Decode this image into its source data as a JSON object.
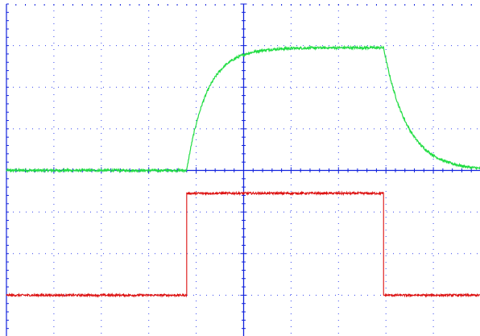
{
  "colors": {
    "background": "#ffffff",
    "grid": "#3344ee",
    "axis": "#1122dd",
    "channel_1": "#22dd44",
    "channel_2": "#dd1111"
  },
  "chart_data": {
    "type": "line",
    "title": "",
    "xlabel": "",
    "ylabel": "",
    "grid": true,
    "divisions": {
      "x": 10,
      "y": 8
    },
    "xlim": [
      -5,
      5
    ],
    "ylim": [
      -4,
      4
    ],
    "tick_labels_printed": false,
    "series": [
      {
        "color": "#22dd44",
        "model": "rc_step_response",
        "baseline": 0.0,
        "step_high": 2.95,
        "rise_start_x": -1.2,
        "fall_start_x": 2.95,
        "rise_time_constant": 0.42,
        "fall_time_constant": 0.5,
        "x": [
          -5,
          -1.2,
          -0.9,
          -0.6,
          -0.3,
          0.0,
          0.5,
          1.0,
          2.0,
          2.95,
          3.2,
          3.5,
          4.0,
          4.5,
          5.0
        ],
        "values": [
          0.0,
          0.0,
          1.55,
          2.2,
          2.6,
          2.78,
          2.88,
          2.92,
          2.95,
          2.95,
          1.8,
          1.05,
          0.45,
          0.17,
          0.05
        ]
      },
      {
        "color": "#dd1111",
        "model": "square_pulse",
        "low": -3.0,
        "high": -0.55,
        "rise_x": -1.2,
        "fall_x": 2.95,
        "x": [
          -5,
          -1.2,
          -1.2,
          2.95,
          2.95,
          5.0
        ],
        "values": [
          -3.0,
          -3.0,
          -0.55,
          -0.55,
          -3.0,
          -3.0
        ]
      }
    ]
  }
}
